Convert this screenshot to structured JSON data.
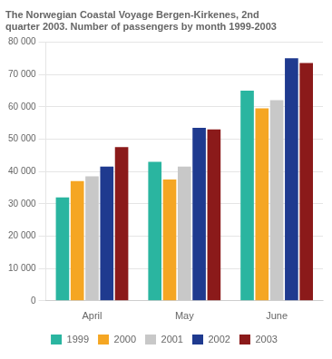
{
  "chart_data": {
    "type": "bar",
    "title": "The Norwegian Coastal Voyage Bergen-Kirkenes, 2nd\nquarter 2003. Number of passengers by month 1999-2003",
    "categories": [
      "April",
      "May",
      "June"
    ],
    "series": [
      {
        "name": "1999",
        "color": "#2ab5a0",
        "values": [
          32000,
          43000,
          65000
        ]
      },
      {
        "name": "2000",
        "color": "#f5a623",
        "values": [
          37000,
          37500,
          59500
        ]
      },
      {
        "name": "2001",
        "color": "#c8c8c8",
        "values": [
          38500,
          41500,
          62000
        ]
      },
      {
        "name": "2002",
        "color": "#1f3a8f",
        "values": [
          41500,
          53500,
          75000
        ]
      },
      {
        "name": "2003",
        "color": "#8b1a1a",
        "values": [
          47500,
          53000,
          73500
        ]
      }
    ],
    "ylim": [
      0,
      80000
    ],
    "yticks": [
      0,
      {
        "value": 10000,
        "label": "10 000"
      },
      {
        "value": 20000,
        "label": "20 000"
      },
      {
        "value": 30000,
        "label": "30 000"
      },
      {
        "value": 40000,
        "label": "40 000"
      },
      {
        "value": 50000,
        "label": "50 000"
      },
      {
        "value": 60000,
        "label": "60 000"
      },
      {
        "value": 70000,
        "label": "70 000"
      },
      {
        "value": 80000,
        "label": "80 000"
      }
    ],
    "grid": true,
    "legend": "bottom"
  }
}
